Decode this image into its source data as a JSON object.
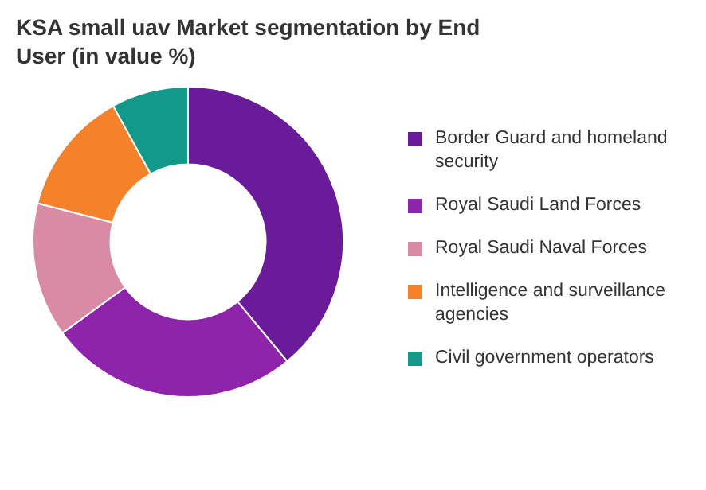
{
  "chart_data": {
    "type": "donut",
    "title": "KSA small uav Market segmentation by End User (in value %)",
    "categories": [
      "Border Guard and homeland security",
      "Royal Saudi Land Forces",
      "Royal Saudi Naval Forces",
      "Intelligence and surveillance agencies",
      "Civil government operators"
    ],
    "values": [
      39,
      26,
      14,
      13,
      8
    ],
    "colors": [
      "#6a1b9a",
      "#8e24aa",
      "#d98aa5",
      "#f4822a",
      "#13998a"
    ],
    "legend": "right"
  }
}
